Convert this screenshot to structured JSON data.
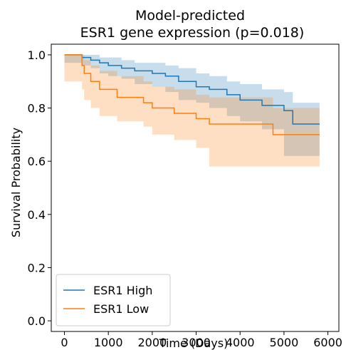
{
  "chart_data": {
    "type": "survival",
    "title": [
      "Model-predicted",
      "ESR1 gene expression (p=0.018)"
    ],
    "xlabel": "Time (Days)",
    "ylabel": "Survival Probability",
    "xlim": [
      -300,
      6250
    ],
    "ylim": [
      -0.04,
      1.04
    ],
    "xticks": [
      0,
      1000,
      2000,
      3000,
      4000,
      5000,
      6000
    ],
    "yticks": [
      {
        "value": 0,
        "label": "0.0"
      },
      0.2,
      0.4,
      0.6,
      0.8,
      {
        "value": 1,
        "label": "1.0"
      }
    ],
    "legend": "lower left",
    "series": [
      {
        "name": "ESR1 High",
        "color": "#1f77b4",
        "x": [
          0,
          400,
          600,
          800,
          1000,
          1300,
          1600,
          2000,
          2300,
          2600,
          3000,
          3300,
          3700,
          4000,
          4500,
          5000,
          5200,
          5810
        ],
        "values": [
          1.0,
          0.99,
          0.98,
          0.97,
          0.96,
          0.95,
          0.94,
          0.93,
          0.92,
          0.9,
          0.88,
          0.87,
          0.85,
          0.83,
          0.81,
          0.79,
          0.74,
          0.74
        ],
        "upper": [
          1.0,
          1.0,
          1.0,
          0.99,
          0.99,
          0.98,
          0.97,
          0.97,
          0.96,
          0.95,
          0.93,
          0.92,
          0.9,
          0.89,
          0.87,
          0.86,
          0.82,
          0.82
        ],
        "lower": [
          1.0,
          0.97,
          0.96,
          0.95,
          0.93,
          0.92,
          0.91,
          0.89,
          0.88,
          0.86,
          0.83,
          0.82,
          0.8,
          0.77,
          0.75,
          0.72,
          0.62,
          0.62
        ]
      },
      {
        "name": "ESR1 Low",
        "color": "#ff7f0e",
        "x": [
          0,
          400,
          450,
          600,
          800,
          1200,
          1800,
          2000,
          2500,
          3000,
          3300,
          4750,
          5810
        ],
        "values": [
          1.0,
          0.96,
          0.93,
          0.9,
          0.87,
          0.84,
          0.82,
          0.8,
          0.78,
          0.76,
          0.74,
          0.7,
          0.7
        ],
        "upper": [
          1.0,
          1.0,
          0.98,
          0.96,
          0.94,
          0.92,
          0.9,
          0.88,
          0.87,
          0.85,
          0.84,
          0.8,
          0.8
        ],
        "lower": [
          1.0,
          0.9,
          0.87,
          0.83,
          0.8,
          0.77,
          0.75,
          0.73,
          0.7,
          0.68,
          0.65,
          0.58,
          0.58
        ]
      }
    ]
  }
}
